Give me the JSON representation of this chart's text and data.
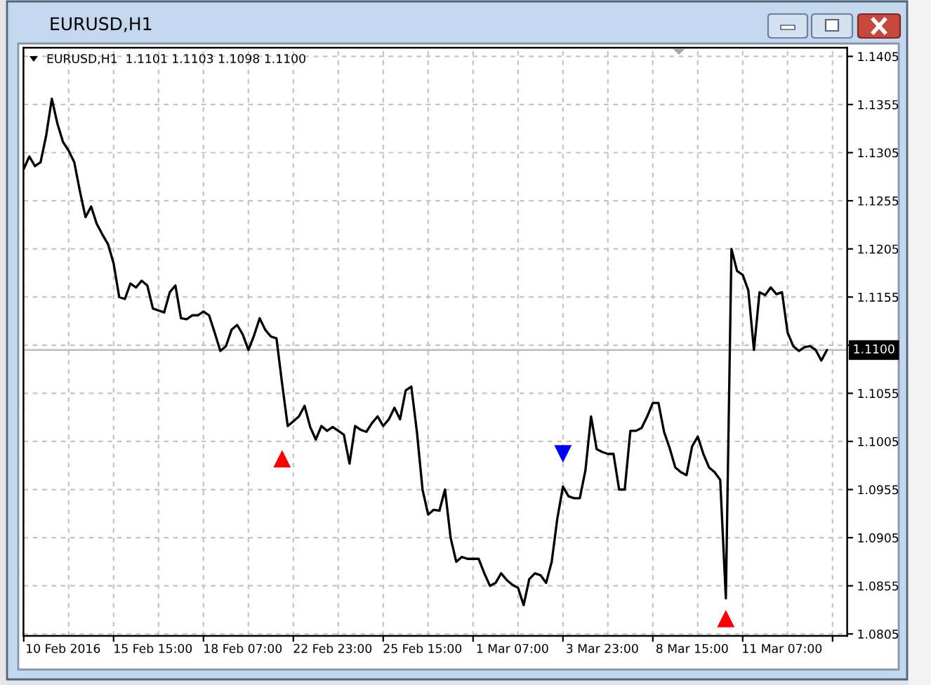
{
  "chart_data": {
    "type": "line",
    "title": "EURUSD,H1",
    "subtitle": "EURUSD,H1  1.1101 1.1103 1.1098 1.1100",
    "categories": [
      null,
      null,
      null,
      null,
      null,
      null,
      null,
      "10 Feb 2016",
      null,
      null,
      null,
      null,
      null,
      null,
      null,
      null,
      null,
      null,
      null,
      null,
      null,
      null,
      null,
      "15 Feb 15:00",
      null,
      null,
      null,
      null,
      null,
      null,
      null,
      null,
      null,
      null,
      null,
      null,
      null,
      null,
      null,
      "18 Feb 07:00",
      null,
      null,
      null,
      null,
      null,
      null,
      null,
      null,
      null,
      null,
      null,
      null,
      null,
      null,
      null,
      "22 Feb 23:00",
      null,
      null,
      null,
      null,
      null,
      null,
      null,
      null,
      null,
      null,
      null,
      null,
      null,
      null,
      null,
      "25 Feb 15:00",
      null,
      null,
      null,
      null,
      null,
      null,
      null,
      null,
      null,
      null,
      null,
      null,
      null,
      null,
      null,
      "1 Mar 07:00",
      null,
      null,
      null,
      null,
      null,
      null,
      null,
      null,
      null,
      null,
      null,
      null,
      null,
      null,
      null,
      "3 Mar 23:00",
      null,
      null,
      null,
      null,
      null,
      null,
      null,
      null,
      null,
      null,
      null,
      null,
      null,
      null,
      null,
      "8 Mar 15:00",
      null,
      null,
      null,
      null,
      null,
      null,
      null,
      null,
      null,
      null,
      null,
      null,
      null,
      null,
      null,
      "11 Mar 07:00",
      null,
      null,
      null,
      null,
      null,
      null,
      null,
      null,
      null,
      null,
      null
    ],
    "series": [
      {
        "color": "#000000",
        "values": [
          1.1288,
          1.1301,
          1.1291,
          1.1295,
          1.1323,
          1.1361,
          1.1335,
          1.1316,
          1.1307,
          1.1295,
          1.1265,
          1.1238,
          1.1249,
          1.1231,
          1.122,
          1.121,
          1.119,
          1.1155,
          1.1153,
          1.1169,
          1.1165,
          1.1172,
          1.1167,
          1.1143,
          1.1141,
          1.1139,
          1.116,
          1.1167,
          1.1133,
          1.1132,
          1.1136,
          1.1136,
          1.114,
          1.1136,
          1.1118,
          1.1099,
          1.1104,
          1.1121,
          1.1126,
          1.1116,
          1.11,
          1.1115,
          1.1133,
          1.1121,
          1.1114,
          1.1112,
          1.1065,
          1.1021,
          1.1026,
          1.1031,
          1.1042,
          1.102,
          1.1007,
          1.1021,
          1.1016,
          1.102,
          1.1016,
          1.1012,
          1.0982,
          1.1021,
          1.1017,
          1.1015,
          1.1024,
          1.1031,
          1.1021,
          1.1028,
          1.104,
          1.1028,
          1.1058,
          1.1062,
          1.1015,
          1.0955,
          1.0929,
          1.0934,
          1.0933,
          1.0955,
          1.0905,
          1.088,
          1.0885,
          1.0883,
          1.0883,
          1.0883,
          1.0868,
          1.0855,
          1.0858,
          1.0868,
          1.0861,
          1.0856,
          1.0853,
          1.0835,
          1.0862,
          1.0868,
          1.0866,
          1.0858,
          1.088,
          1.0925,
          1.0958,
          1.0948,
          1.0946,
          1.0946,
          1.0975,
          1.1031,
          1.0997,
          1.0994,
          1.0992,
          1.0992,
          1.0955,
          1.0955,
          1.1016,
          1.1016,
          1.1019,
          1.1031,
          1.1045,
          1.1045,
          1.1015,
          1.0998,
          1.0978,
          1.0973,
          1.097,
          1.1,
          1.101,
          1.0992,
          1.0978,
          1.0973,
          1.0965,
          1.0842,
          1.1205,
          1.1182,
          1.1178,
          1.1162,
          1.11,
          1.116,
          1.1157,
          1.1165,
          1.1158,
          1.116,
          1.1118,
          1.1104,
          1.1099,
          1.1103,
          1.1104,
          1.11,
          1.1089,
          1.11,
          null,
          null,
          null
        ]
      },
      {
        "type": "scatter",
        "color": "#ff0000",
        "marker": "triangle",
        "values": [
          null,
          null,
          null,
          null,
          null,
          null,
          null,
          null,
          null,
          null,
          null,
          null,
          null,
          null,
          null,
          null,
          null,
          null,
          null,
          null,
          null,
          null,
          null,
          null,
          null,
          null,
          null,
          null,
          null,
          null,
          null,
          null,
          null,
          null,
          null,
          null,
          null,
          null,
          null,
          null,
          null,
          null,
          null,
          null,
          null,
          null,
          1.0987,
          null,
          null,
          null,
          null,
          null,
          null,
          null,
          null,
          null,
          null,
          null,
          null,
          null,
          null,
          null,
          null,
          null,
          null,
          null,
          null,
          null,
          null,
          null,
          null,
          null,
          null,
          null,
          null,
          null,
          null,
          null,
          null,
          null,
          null,
          null,
          null,
          null,
          null,
          null,
          null,
          null,
          null,
          null,
          null,
          null,
          null,
          null,
          null,
          null,
          null,
          null,
          null,
          null,
          null,
          null,
          null,
          null,
          null,
          null,
          null,
          null,
          null,
          null,
          null,
          null,
          null,
          null,
          null,
          null,
          null,
          null,
          null,
          null,
          null,
          null,
          null,
          null,
          null,
          1.0821,
          null,
          null,
          null,
          null,
          null,
          null,
          null,
          null,
          null,
          null,
          null,
          null,
          null,
          null,
          null,
          null,
          null,
          null,
          null,
          null,
          null
        ]
      },
      {
        "type": "scatter",
        "color": "#0000ff",
        "marker": "triangle",
        "values": [
          null,
          null,
          null,
          null,
          null,
          null,
          null,
          null,
          null,
          null,
          null,
          null,
          null,
          null,
          null,
          null,
          null,
          null,
          null,
          null,
          null,
          null,
          null,
          null,
          null,
          null,
          null,
          null,
          null,
          null,
          null,
          null,
          null,
          null,
          null,
          null,
          null,
          null,
          null,
          null,
          null,
          null,
          null,
          null,
          null,
          null,
          null,
          null,
          null,
          null,
          null,
          null,
          null,
          null,
          null,
          null,
          null,
          null,
          null,
          null,
          null,
          null,
          null,
          null,
          null,
          null,
          null,
          null,
          null,
          null,
          null,
          null,
          null,
          null,
          null,
          null,
          null,
          null,
          null,
          null,
          null,
          null,
          null,
          null,
          null,
          null,
          null,
          null,
          null,
          null,
          null,
          null,
          null,
          null,
          null,
          null,
          1.0992,
          null,
          null,
          null,
          null,
          null,
          null,
          null,
          null,
          null,
          null,
          null,
          null,
          null,
          null,
          null,
          null,
          null,
          null,
          null,
          null,
          null,
          null,
          null,
          null,
          null,
          null,
          null,
          null,
          null,
          null,
          null,
          null,
          null,
          null,
          null,
          null,
          null,
          null,
          null,
          null,
          null,
          null,
          null,
          null,
          null,
          null,
          null,
          null,
          null,
          null
        ]
      }
    ],
    "ylim": [
      1.0803,
      1.1414
    ],
    "yticks": [
      1.0805,
      1.0855,
      1.0905,
      1.0955,
      1.1005,
      1.1055,
      {
        "value": 1.1105,
        "label": null
      },
      1.1155,
      1.1205,
      1.1255,
      1.1305,
      1.1355,
      1.1405
    ],
    "grid": true,
    "ref_lines": [
      {
        "axis": "y",
        "value": 1.11,
        "label": "1.1100",
        "color": "#c0c0c0"
      }
    ]
  }
}
